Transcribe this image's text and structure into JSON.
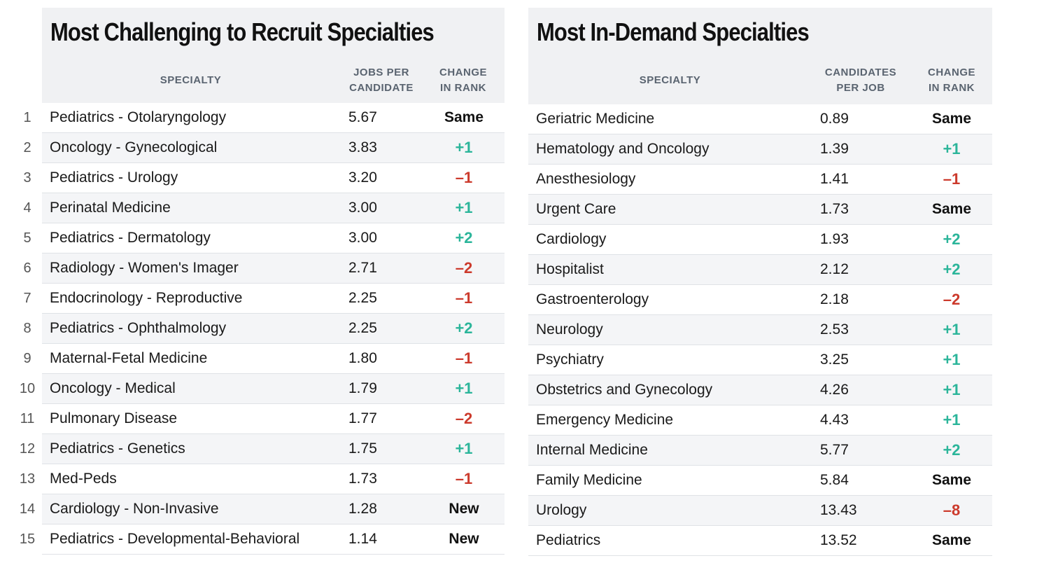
{
  "ranks": [
    "1",
    "2",
    "3",
    "4",
    "5",
    "6",
    "7",
    "8",
    "9",
    "10",
    "11",
    "12",
    "13",
    "14",
    "15"
  ],
  "left_table": {
    "title": "Most Challenging to Recruit Specialties",
    "headers": {
      "specialty": "SPECIALTY",
      "value_line1": "JOBS PER",
      "value_line2": "CANDIDATE",
      "change_line1": "CHANGE",
      "change_line2": "IN RANK"
    },
    "rows": [
      {
        "specialty": "Pediatrics - Otolaryngology",
        "value": "5.67",
        "change": "Same",
        "trend": "same"
      },
      {
        "specialty": "Oncology - Gynecological",
        "value": "3.83",
        "change": "+1",
        "trend": "up"
      },
      {
        "specialty": "Pediatrics - Urology",
        "value": "3.20",
        "change": "–1",
        "trend": "down"
      },
      {
        "specialty": "Perinatal Medicine",
        "value": "3.00",
        "change": "+1",
        "trend": "up"
      },
      {
        "specialty": "Pediatrics - Dermatology",
        "value": "3.00",
        "change": "+2",
        "trend": "up"
      },
      {
        "specialty": "Radiology - Women's Imager",
        "value": "2.71",
        "change": "–2",
        "trend": "down"
      },
      {
        "specialty": "Endocrinology - Reproductive",
        "value": "2.25",
        "change": "–1",
        "trend": "down"
      },
      {
        "specialty": "Pediatrics - Ophthalmology",
        "value": "2.25",
        "change": "+2",
        "trend": "up"
      },
      {
        "specialty": "Maternal-Fetal Medicine",
        "value": "1.80",
        "change": "–1",
        "trend": "down"
      },
      {
        "specialty": "Oncology - Medical",
        "value": "1.79",
        "change": "+1",
        "trend": "up"
      },
      {
        "specialty": "Pulmonary Disease",
        "value": "1.77",
        "change": "–2",
        "trend": "down"
      },
      {
        "specialty": "Pediatrics - Genetics",
        "value": "1.75",
        "change": "+1",
        "trend": "up"
      },
      {
        "specialty": "Med-Peds",
        "value": "1.73",
        "change": "–1",
        "trend": "down"
      },
      {
        "specialty": "Cardiology - Non-Invasive",
        "value": "1.28",
        "change": "New",
        "trend": "same"
      },
      {
        "specialty": "Pediatrics - Developmental-Behavioral",
        "value": "1.14",
        "change": "New",
        "trend": "same"
      }
    ]
  },
  "right_table": {
    "title": "Most In-Demand Specialties",
    "headers": {
      "specialty": "SPECIALTY",
      "value_line1": "CANDIDATES",
      "value_line2": "PER JOB",
      "change_line1": "CHANGE",
      "change_line2": "IN RANK"
    },
    "rows": [
      {
        "specialty": "Geriatric Medicine",
        "value": "0.89",
        "change": "Same",
        "trend": "same"
      },
      {
        "specialty": "Hematology and Oncology",
        "value": "1.39",
        "change": "+1",
        "trend": "up"
      },
      {
        "specialty": "Anesthesiology",
        "value": "1.41",
        "change": "–1",
        "trend": "down"
      },
      {
        "specialty": "Urgent Care",
        "value": "1.73",
        "change": "Same",
        "trend": "same"
      },
      {
        "specialty": "Cardiology",
        "value": "1.93",
        "change": "+2",
        "trend": "up"
      },
      {
        "specialty": "Hospitalist",
        "value": "2.12",
        "change": "+2",
        "trend": "up"
      },
      {
        "specialty": "Gastroenterology",
        "value": "2.18",
        "change": "–2",
        "trend": "down"
      },
      {
        "specialty": "Neurology",
        "value": "2.53",
        "change": "+1",
        "trend": "up"
      },
      {
        "specialty": "Psychiatry",
        "value": "3.25",
        "change": "+1",
        "trend": "up"
      },
      {
        "specialty": "Obstetrics and Gynecology",
        "value": "4.26",
        "change": "+1",
        "trend": "up"
      },
      {
        "specialty": "Emergency Medicine",
        "value": "4.43",
        "change": "+1",
        "trend": "up"
      },
      {
        "specialty": "Internal Medicine",
        "value": "5.77",
        "change": "+2",
        "trend": "up"
      },
      {
        "specialty": "Family Medicine",
        "value": "5.84",
        "change": "Same",
        "trend": "same"
      },
      {
        "specialty": "Urology",
        "value": "13.43",
        "change": "–8",
        "trend": "down"
      },
      {
        "specialty": "Pediatrics",
        "value": "13.52",
        "change": "Same",
        "trend": "same"
      }
    ]
  },
  "colors": {
    "up": "#2bb59a",
    "down": "#cc3a2c",
    "header_bg": "#f0f1f3",
    "alt_row_bg": "#f4f5f7"
  }
}
